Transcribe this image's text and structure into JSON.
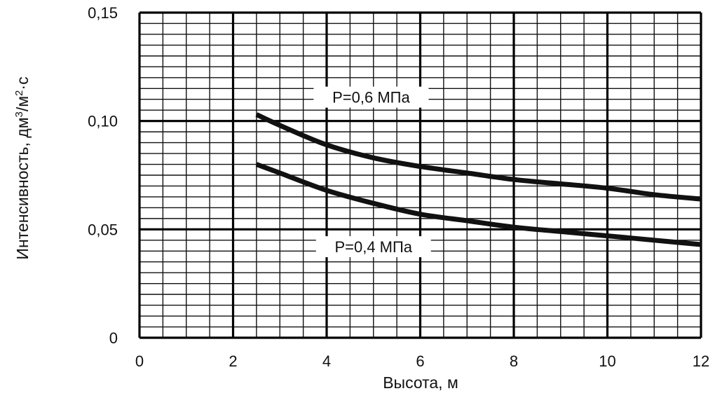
{
  "chart_data": {
    "type": "line",
    "title": "",
    "xlabel": "Высота, м",
    "ylabel": "Интенсивность, дм³/м²·с",
    "ylabel_parts": {
      "main": "Интенсивность, дм",
      "sup1": "3",
      "mid": "/м",
      "sup2": "2",
      "tail": "·с"
    },
    "xlim": [
      0,
      12
    ],
    "ylim": [
      0,
      0.15
    ],
    "x_ticks": [
      0,
      2,
      4,
      6,
      8,
      10,
      12
    ],
    "x_tick_labels": [
      "0",
      "2",
      "4",
      "6",
      "8",
      "10",
      "12"
    ],
    "y_ticks": [
      0,
      0.05,
      0.1,
      0.15
    ],
    "y_tick_labels": [
      "0",
      "0,05",
      "0,10",
      "0,15"
    ],
    "minor_x_step": 0.5,
    "minor_y_step": 0.005,
    "major_x_step": 2,
    "major_y_step": 0.05,
    "grid": true,
    "legend": "none",
    "series": [
      {
        "name": "P=0,6 МПа",
        "color": "#111111",
        "x": [
          2.5,
          3,
          4,
          5,
          6,
          7,
          8,
          9,
          10,
          11,
          12
        ],
        "y": [
          0.103,
          0.098,
          0.089,
          0.083,
          0.079,
          0.076,
          0.073,
          0.071,
          0.069,
          0.066,
          0.064
        ]
      },
      {
        "name": "P=0,4 МПа",
        "color": "#111111",
        "x": [
          2.5,
          3,
          4,
          5,
          6,
          7,
          8,
          9,
          10,
          11,
          12
        ],
        "y": [
          0.08,
          0.076,
          0.068,
          0.062,
          0.057,
          0.054,
          0.051,
          0.049,
          0.047,
          0.045,
          0.043
        ]
      }
    ],
    "annotations": [
      {
        "text": "P=0,6 МПа",
        "series": 0,
        "x": 4.95,
        "y": 0.111
      },
      {
        "text": "P=0,4 МПа",
        "series": 1,
        "x": 5.0,
        "y": 0.042
      }
    ]
  }
}
